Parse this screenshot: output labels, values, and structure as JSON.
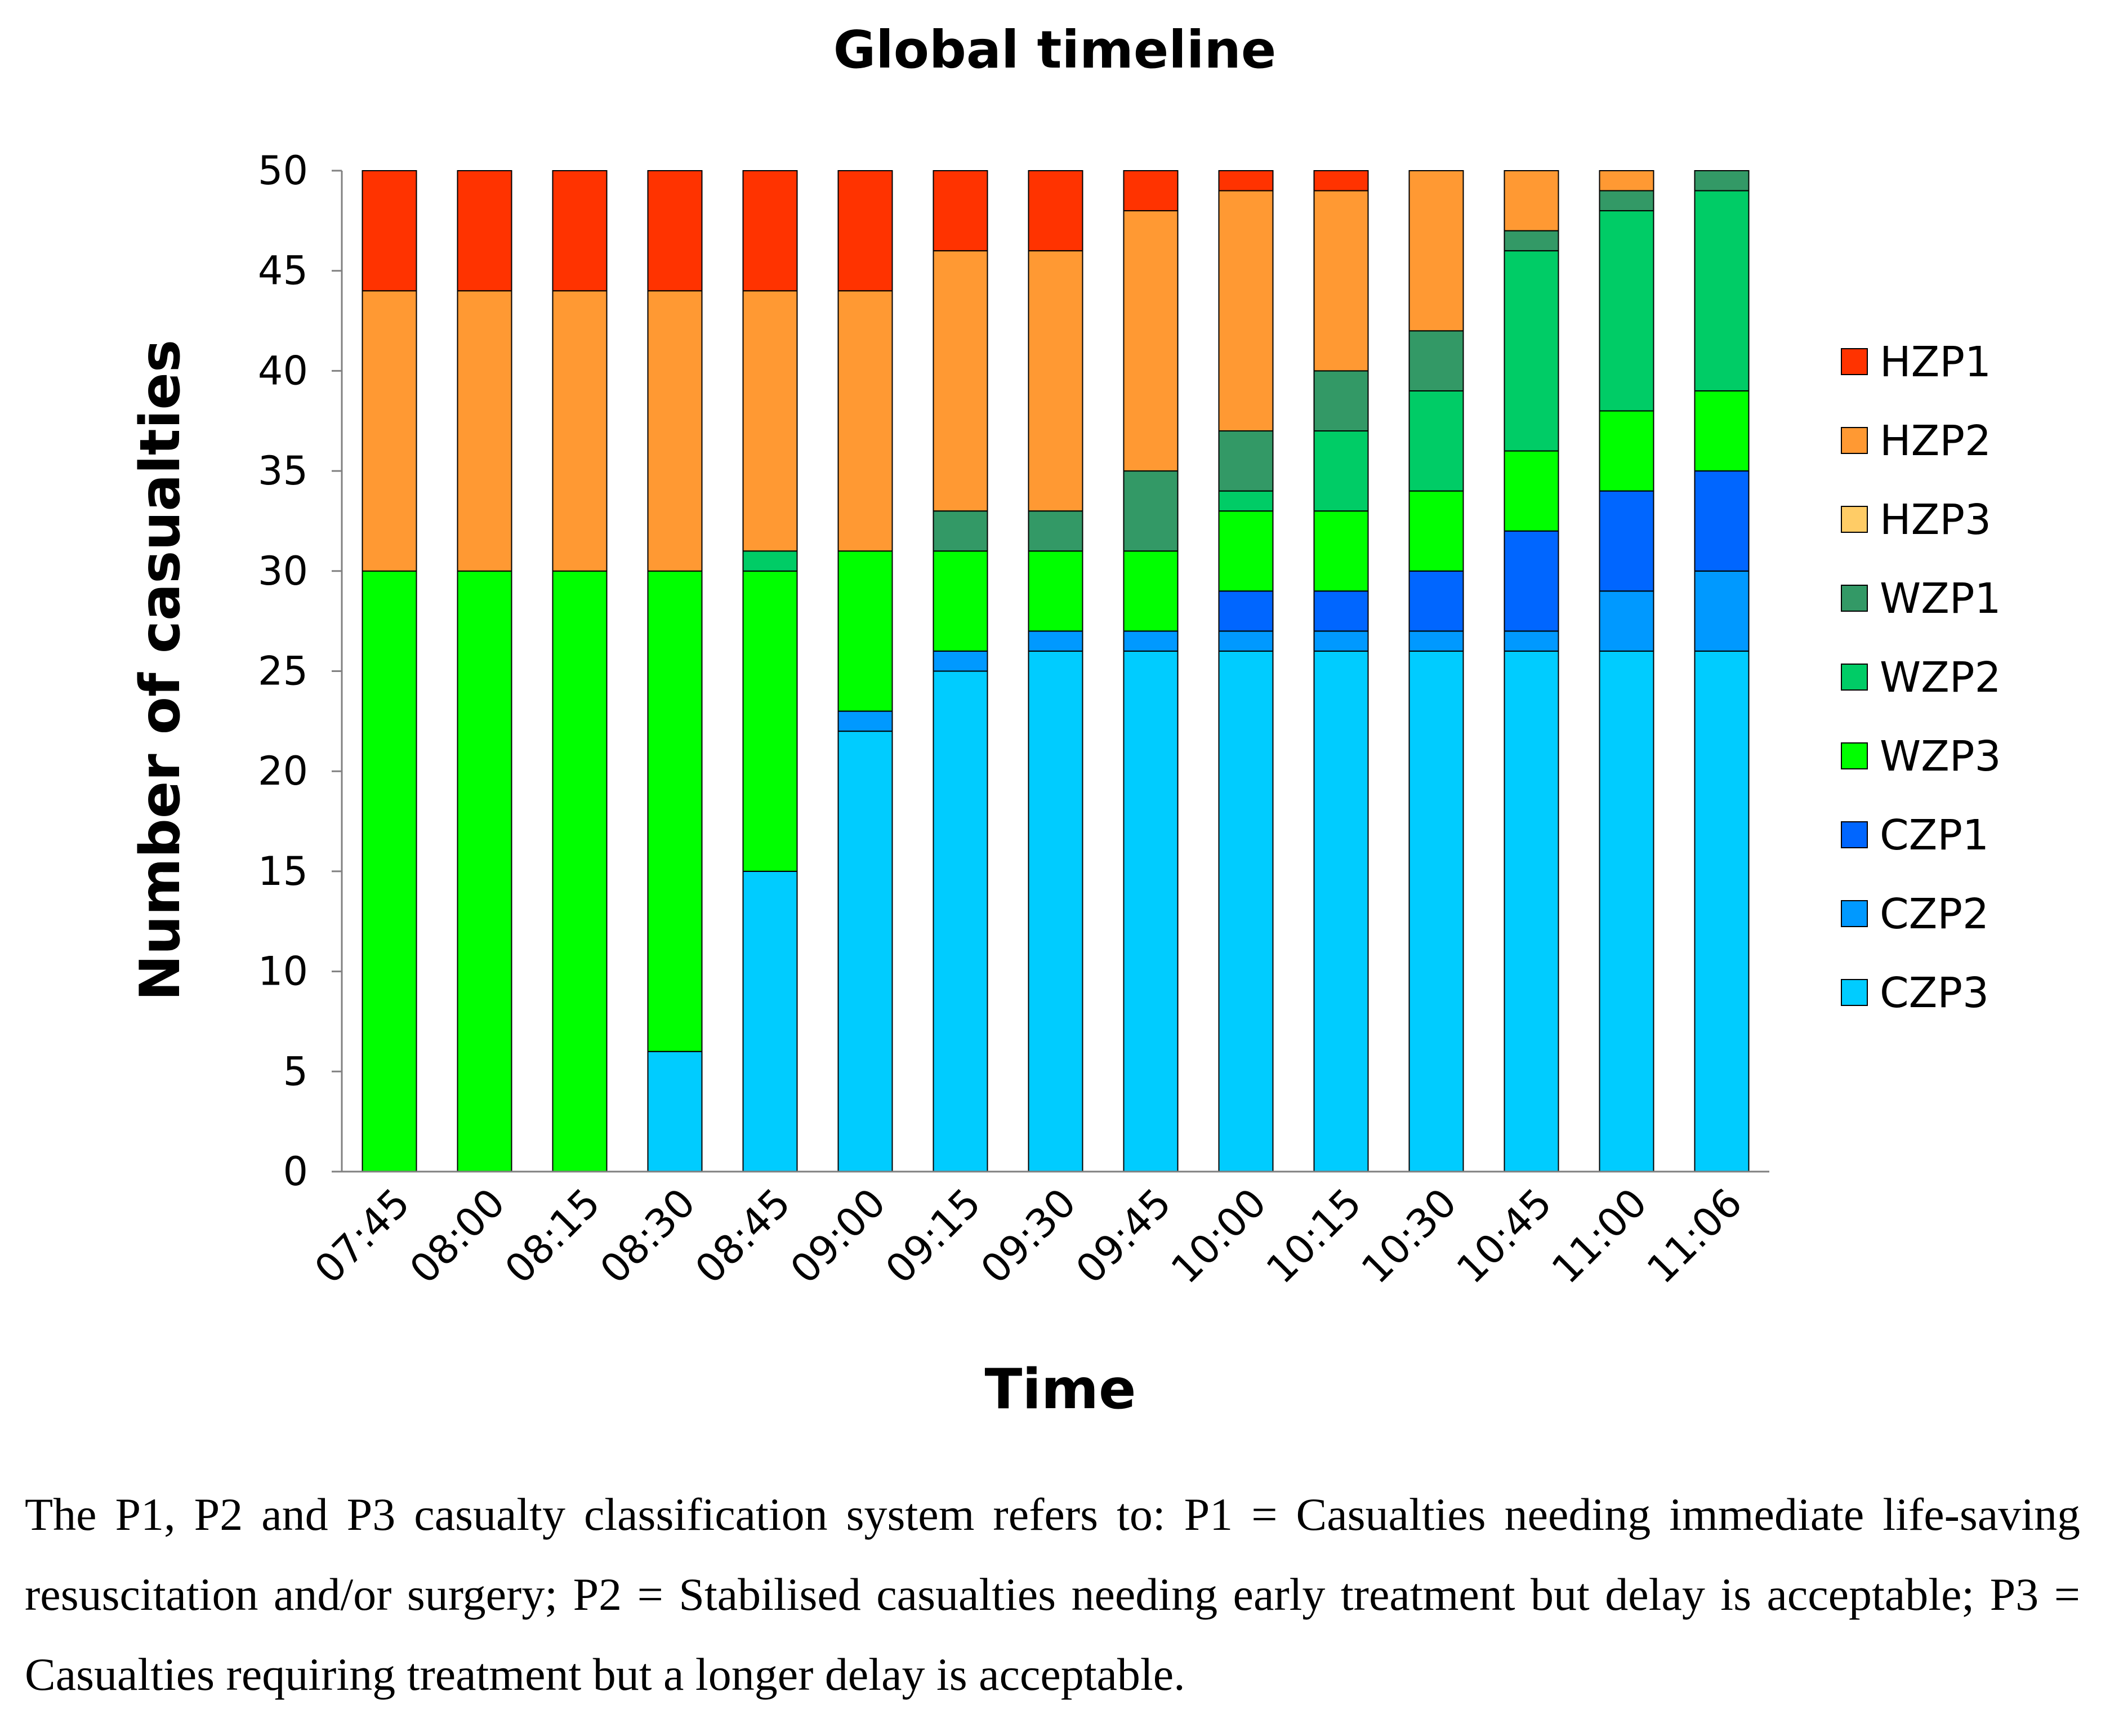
{
  "chart_data": {
    "type": "bar",
    "stacked": true,
    "title": "Global timeline",
    "xlabel": "Time",
    "ylabel": "Number of casualties",
    "ylim": [
      0,
      50
    ],
    "yticks": [
      0,
      5,
      10,
      15,
      20,
      25,
      30,
      35,
      40,
      45,
      50
    ],
    "categories": [
      "07:45",
      "08:00",
      "08:15",
      "08:30",
      "08:45",
      "09:00",
      "09:15",
      "09:30",
      "09:45",
      "10:00",
      "10:15",
      "10:30",
      "10:45",
      "11:00",
      "11:06"
    ],
    "series": [
      {
        "name": "CZP3",
        "color": "#00CCFF",
        "values": [
          0,
          0,
          0,
          6,
          15,
          22,
          25,
          26,
          26,
          26,
          26,
          26,
          26,
          26,
          26
        ]
      },
      {
        "name": "CZP2",
        "color": "#0099FF",
        "values": [
          0,
          0,
          0,
          0,
          0,
          1,
          1,
          1,
          1,
          1,
          1,
          1,
          1,
          3,
          4
        ]
      },
      {
        "name": "CZP1",
        "color": "#0066FF",
        "values": [
          0,
          0,
          0,
          0,
          0,
          0,
          0,
          0,
          0,
          2,
          2,
          3,
          5,
          5,
          5
        ]
      },
      {
        "name": "WZP3",
        "color": "#00FF00",
        "values": [
          30,
          30,
          30,
          24,
          15,
          8,
          5,
          4,
          4,
          4,
          4,
          4,
          4,
          4,
          4
        ]
      },
      {
        "name": "WZP2",
        "color": "#00CC66",
        "values": [
          0,
          0,
          0,
          0,
          1,
          0,
          0,
          0,
          0,
          1,
          4,
          5,
          10,
          10,
          10
        ]
      },
      {
        "name": "WZP1",
        "color": "#339966",
        "values": [
          0,
          0,
          0,
          0,
          0,
          0,
          2,
          2,
          4,
          3,
          3,
          3,
          1,
          1,
          1
        ]
      },
      {
        "name": "HZP3",
        "color": "#FFCC66",
        "values": [
          0,
          0,
          0,
          0,
          0,
          0,
          0,
          0,
          0,
          0,
          0,
          0,
          0,
          0,
          0
        ]
      },
      {
        "name": "HZP2",
        "color": "#FF9933",
        "values": [
          14,
          14,
          14,
          14,
          13,
          13,
          13,
          13,
          13,
          12,
          9,
          8,
          3,
          1,
          0
        ]
      },
      {
        "name": "HZP1",
        "color": "#FF3300",
        "values": [
          6,
          6,
          6,
          6,
          6,
          6,
          4,
          4,
          2,
          1,
          1,
          0,
          0,
          0,
          0
        ]
      }
    ],
    "legend_order": [
      "HZP1",
      "HZP2",
      "HZP3",
      "WZP1",
      "WZP2",
      "WZP3",
      "CZP1",
      "CZP2",
      "CZP3"
    ],
    "legend_position": "right"
  },
  "caption": "The P1, P2 and P3 casualty classification system refers to: P1 = Casualties needing immediate life-saving resuscitation and/or surgery; P2 = Stabilised casualties needing early treatment but delay is acceptable; P3 = Casualties requiring treatment but a longer delay is acceptable."
}
